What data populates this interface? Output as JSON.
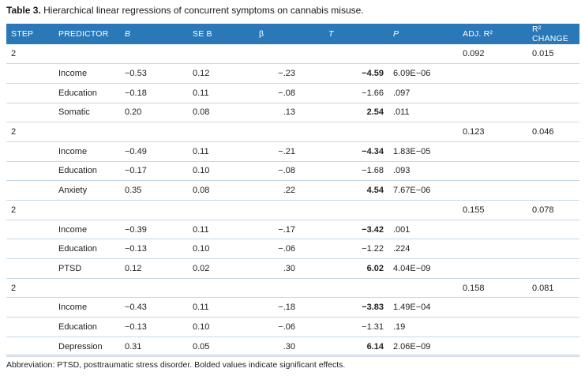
{
  "caption": {
    "label": "Table 3.",
    "text": "Hierarchical linear regressions of concurrent symptoms on cannabis misuse."
  },
  "headers": [
    "STEP",
    "PREDICTOR",
    "B",
    "SE B",
    "β",
    "T",
    "P",
    "ADJ. R²",
    "R² CHANGE"
  ],
  "blocks": [
    {
      "step": "2",
      "adj_r2": "0.092",
      "r2_change": "0.015",
      "rows": [
        {
          "predictor": "Income",
          "b": "−0.53",
          "se": "0.12",
          "beta": "−.23",
          "t": "−4.59",
          "p": "6.09E−06"
        },
        {
          "predictor": "Education",
          "b": "−0.18",
          "se": "0.11",
          "beta": "−.08",
          "t": "−1.66",
          "p": ".097"
        },
        {
          "predictor": "Somatic",
          "b": "0.20",
          "se": "0.08",
          "beta": ".13",
          "t": "2.54",
          "p": ".011"
        }
      ]
    },
    {
      "step": "2",
      "adj_r2": "0.123",
      "r2_change": "0.046",
      "rows": [
        {
          "predictor": "Income",
          "b": "−0.49",
          "se": "0.11",
          "beta": "−.21",
          "t": "−4.34",
          "p": "1.83E−05"
        },
        {
          "predictor": "Education",
          "b": "−0.17",
          "se": "0.10",
          "beta": "−.08",
          "t": "−1.68",
          "p": ".093"
        },
        {
          "predictor": "Anxiety",
          "b": "0.35",
          "se": "0.08",
          "beta": ".22",
          "t": "4.54",
          "p": "7.67E−06"
        }
      ]
    },
    {
      "step": "2",
      "adj_r2": "0.155",
      "r2_change": "0.078",
      "rows": [
        {
          "predictor": "Income",
          "b": "−0.39",
          "se": "0.11",
          "beta": "−.17",
          "t": "−3.42",
          "p": ".001"
        },
        {
          "predictor": "Education",
          "b": "−0.13",
          "se": "0.10",
          "beta": "−.06",
          "t": "−1.22",
          "p": ".224"
        },
        {
          "predictor": "PTSD",
          "b": "0.12",
          "se": "0.02",
          "beta": ".30",
          "t": "6.02",
          "p": "4.04E−09"
        }
      ]
    },
    {
      "step": "2",
      "adj_r2": "0.158",
      "r2_change": "0.081",
      "rows": [
        {
          "predictor": "Income",
          "b": "−0.43",
          "se": "0.11",
          "beta": "−.18",
          "t": "−3.83",
          "p": "1.49E−04"
        },
        {
          "predictor": "Education",
          "b": "−0.13",
          "se": "0.10",
          "beta": "−.06",
          "t": "−1.31",
          "p": ".19"
        },
        {
          "predictor": "Depression",
          "b": "0.31",
          "se": "0.05",
          "beta": ".30",
          "t": "6.14",
          "p": "2.06E−09"
        }
      ]
    }
  ],
  "footnote": "Abbreviation: PTSD, posttraumatic stress disorder. Bolded values indicate significant effects.",
  "colors": {
    "header_bg": "#2b78b8",
    "header_text": "#ffffff",
    "row_rule": "#c6d8e8"
  }
}
